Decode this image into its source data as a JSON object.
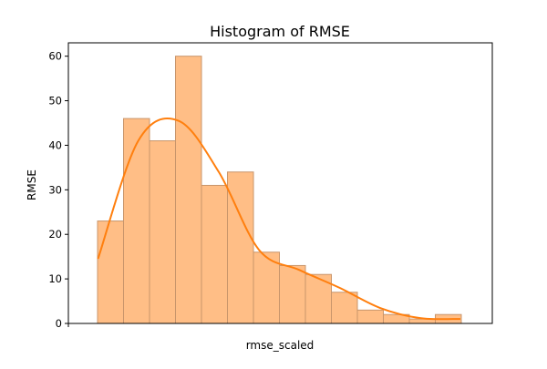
{
  "chart_data": {
    "type": "bar",
    "title": "Histogram of RMSE",
    "xlabel": "rmse_scaled",
    "ylabel": "RMSE",
    "ylim": [
      0,
      63
    ],
    "yticks": [
      0,
      10,
      20,
      30,
      40,
      50,
      60
    ],
    "xticks": [],
    "grid": false,
    "bins": 14,
    "values": [
      23,
      46,
      41,
      60,
      31,
      34,
      16,
      13,
      11,
      7,
      3,
      2,
      1,
      2
    ],
    "density_curve": [
      14.5,
      41,
      45.5,
      34,
      16.5,
      12,
      8,
      3.5,
      1.2,
      1
    ],
    "colors": {
      "bar_fill": "#ffbe86",
      "bar_edge": "#c8956b",
      "kde": "#ff7f0e",
      "axis": "#000000"
    }
  }
}
